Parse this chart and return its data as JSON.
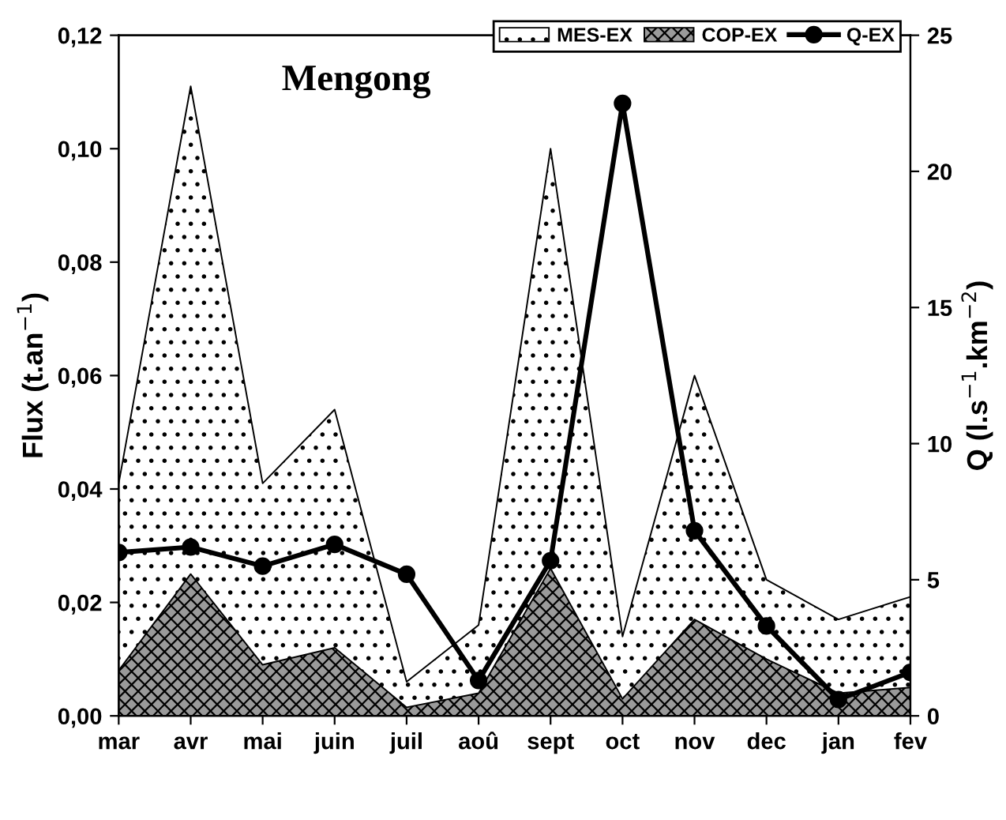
{
  "chart_data": {
    "type": "area",
    "title": "Mengong",
    "ylabel": "Flux (t.an$^{−1}$)",
    "y2label": "Q (l.s$^{−1}$.km$^{−2}$)",
    "categories": [
      "mar",
      "avr",
      "mai",
      "juin",
      "juil",
      "aoû",
      "sept",
      "oct",
      "nov",
      "dec",
      "jan",
      "fev"
    ],
    "series": [
      {
        "name": "MES-EX",
        "color": "#ffffff",
        "values": [
          0.041,
          0.111,
          0.041,
          0.054,
          0.006,
          0.016,
          0.1,
          0.014,
          0.06,
          0.024,
          0.017,
          0.021
        ]
      },
      {
        "name": "COP-EX",
        "color": "#9a9a9a",
        "values": [
          0.008,
          0.025,
          0.009,
          0.012,
          0.0015,
          0.004,
          0.026,
          0.003,
          0.017,
          0.01,
          0.004,
          0.005
        ]
      },
      {
        "name": "Q-EX",
        "type": "line",
        "axis": "y2",
        "color": "#000000",
        "marker": "circle",
        "values": [
          6.0,
          6.2,
          5.5,
          6.3,
          5.2,
          1.3,
          5.7,
          22.5,
          6.8,
          3.3,
          0.6,
          1.6
        ]
      }
    ],
    "ylim": [
      0,
      0.12
    ],
    "yticks": [
      {
        "value": 0,
        "label": "0,00"
      },
      {
        "value": 0.02,
        "label": "0,02"
      },
      {
        "value": 0.04,
        "label": "0,04"
      },
      {
        "value": 0.06,
        "label": "0,06"
      },
      {
        "value": 0.08,
        "label": "0,08"
      },
      {
        "value": 0.1,
        "label": "0,10"
      },
      {
        "value": 0.12,
        "label": "0,12"
      }
    ],
    "y2lim": [
      0,
      25
    ],
    "y2ticks": [
      0,
      5,
      10,
      15,
      20,
      25
    ],
    "grid": false,
    "legend": "top right"
  }
}
